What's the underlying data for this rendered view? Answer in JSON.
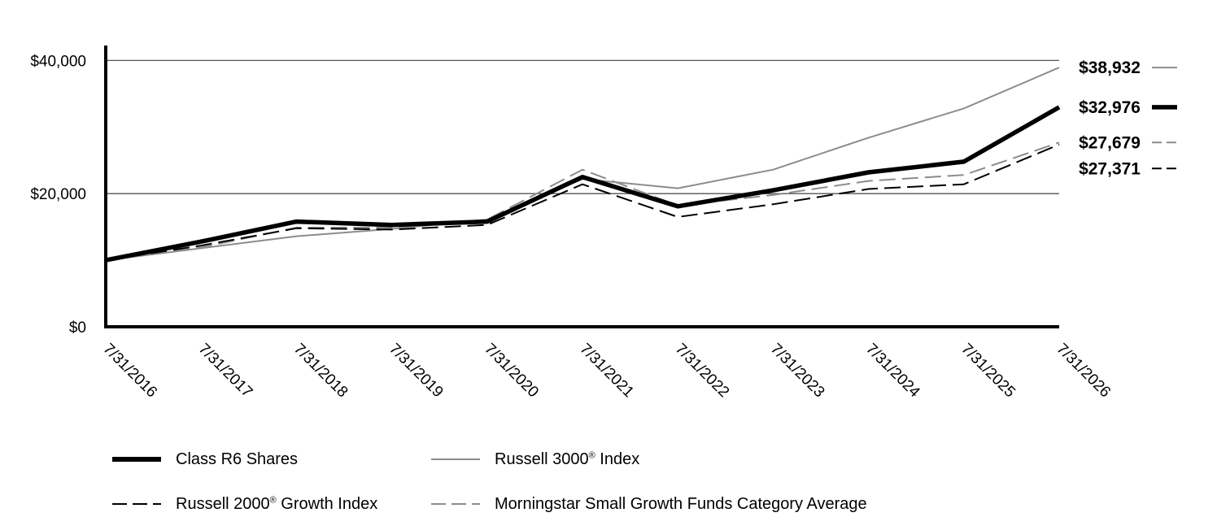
{
  "chart_data": {
    "type": "line",
    "x": [
      "7/31/2016",
      "7/31/2017",
      "7/31/2018",
      "7/31/2019",
      "7/31/2020",
      "7/31/2021",
      "7/31/2022",
      "7/31/2023",
      "7/31/2024",
      "7/31/2025",
      "7/31/2026"
    ],
    "y_ticks": [
      "$0",
      "$20,000",
      "$40,000"
    ],
    "ylim": [
      0,
      42000
    ],
    "grid": true,
    "series": [
      {
        "name": "Class R6 Shares",
        "style": "thick-solid",
        "color": "#000000",
        "values": [
          10000,
          12800,
          15800,
          15300,
          15800,
          22500,
          18100,
          20500,
          23200,
          24800,
          32976
        ],
        "end_label": "$32,976"
      },
      {
        "name": "Russell 3000® Index",
        "style": "thin-solid",
        "color": "#8c8c8c",
        "values": [
          10000,
          11800,
          13600,
          14700,
          16100,
          22200,
          20800,
          23600,
          28400,
          32800,
          38932
        ],
        "end_label": "$38,932"
      },
      {
        "name": "Russell 2000® Growth Index",
        "style": "dashed",
        "color": "#000000",
        "values": [
          10000,
          12200,
          14800,
          14600,
          15300,
          21400,
          16500,
          18400,
          20700,
          21400,
          27371
        ],
        "end_label": "$27,371"
      },
      {
        "name": "Morningstar Small Growth Funds Category Average",
        "style": "dashed",
        "color": "#8c8c8c",
        "values": [
          10000,
          11900,
          14900,
          14900,
          16100,
          23600,
          18200,
          19800,
          21900,
          22800,
          27679
        ],
        "end_label": "$27,679"
      }
    ]
  },
  "legend": {
    "r6": "Class R6 Shares",
    "r3000_pre": "Russell 3000",
    "r3000_post": " Index",
    "r2000_pre": "Russell 2000",
    "r2000_post": " Growth Index",
    "morningstar": "Morningstar Small Growth Funds Category Average",
    "reg_mark": "®"
  }
}
